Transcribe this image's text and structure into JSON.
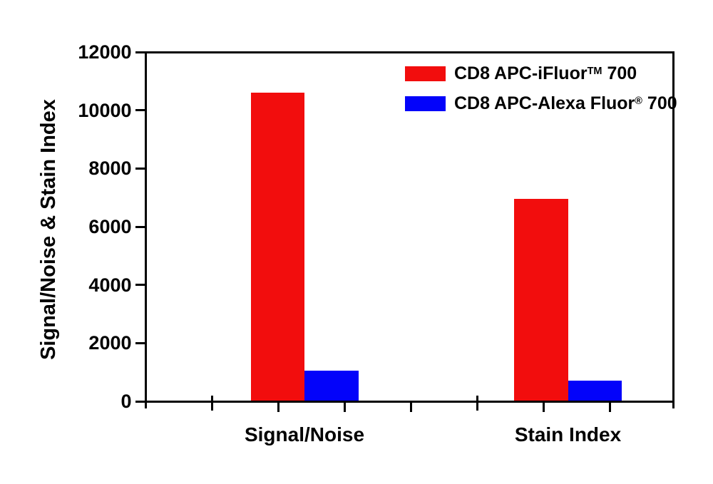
{
  "chart_data": {
    "type": "bar",
    "title": "",
    "xlabel": "",
    "ylabel": "Signal/Noise & Stain Index",
    "ylim": [
      0,
      12000
    ],
    "ytick_step": 2000,
    "yticks": [
      0,
      2000,
      4000,
      6000,
      8000,
      10000,
      12000
    ],
    "grid": false,
    "legend_position": "top-right-inside",
    "categories": [
      {
        "key": "signal-noise",
        "label": "Signal/Noise"
      },
      {
        "key": "stain-index",
        "label": "Stain Index"
      }
    ],
    "series": [
      {
        "key": "cd8-apc-ifluor-700",
        "label_full": "CD8 APC-iFluor™ 700",
        "label_base": "CD8 APC-iFluor",
        "label_sup": "TM",
        "label_after": " 700",
        "color": "#f20d0d",
        "values": [
          10600,
          6950
        ]
      },
      {
        "key": "cd8-apc-alexa-fluor-700",
        "label_full": "CD8 APC-Alexa Fluor® 700",
        "label_base": "CD8 APC-Alexa Fluor",
        "label_sup": "®",
        "label_after": " 700",
        "color": "#0303fa",
        "values": [
          1050,
          700
        ]
      }
    ],
    "colors": {
      "axis": "#000000",
      "background": "#ffffff"
    }
  }
}
